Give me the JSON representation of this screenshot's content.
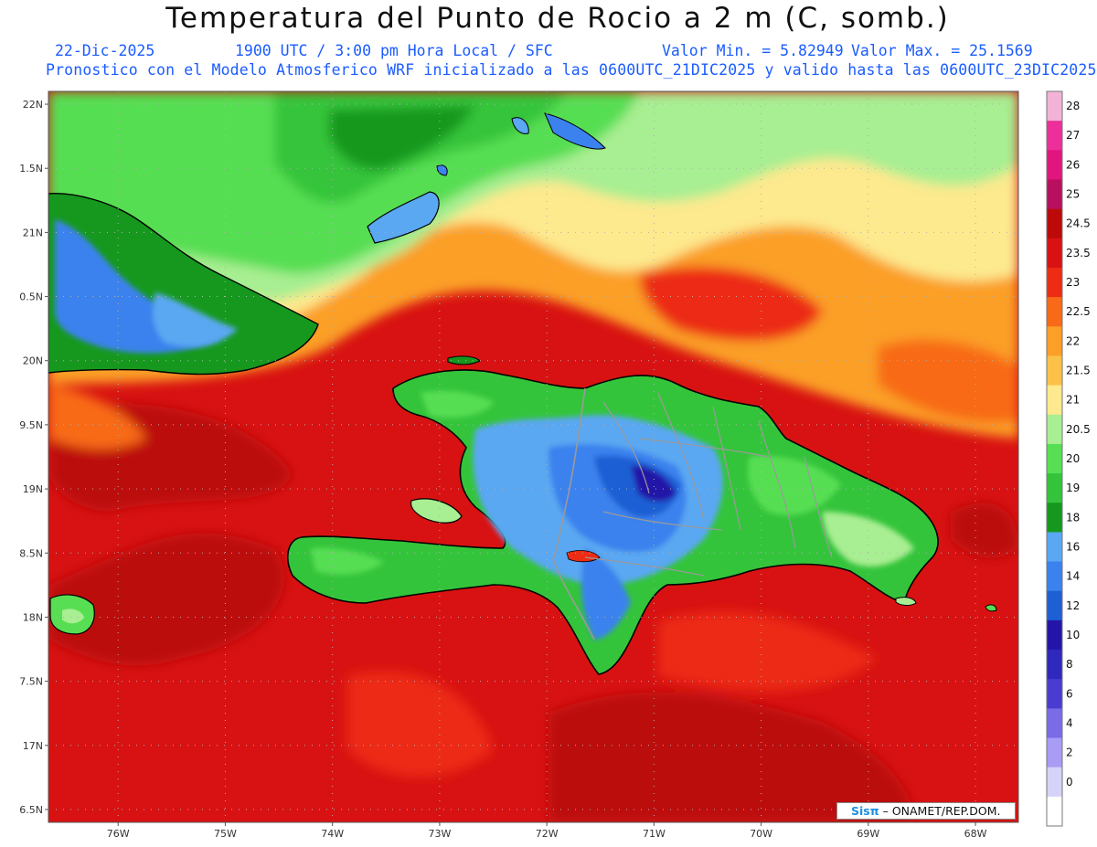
{
  "header": {
    "title": "Temperatura del Punto de Rocio a 2 m (C, somb.)",
    "date": "22-Dic-2025",
    "time": "1900 UTC / 3:00 pm Hora Local / SFC",
    "min": "Valor Min. = 5.82949",
    "max": "Valor Max. = 25.1569",
    "model_line": "Pronostico con el Modelo Atmosferico WRF inicializado a las 0600UTC_21DIC2025 y valido hasta las  0600UTC_23DIC2025"
  },
  "axes": {
    "lon_ticks": [
      {
        "value": -76,
        "label": "76W"
      },
      {
        "value": -75,
        "label": "75W"
      },
      {
        "value": -74,
        "label": "74W"
      },
      {
        "value": -73,
        "label": "73W"
      },
      {
        "value": -72,
        "label": "72W"
      },
      {
        "value": -71,
        "label": "71W"
      },
      {
        "value": -70,
        "label": "70W"
      },
      {
        "value": -69,
        "label": "69W"
      },
      {
        "value": -68,
        "label": "68W"
      }
    ],
    "lat_ticks": [
      {
        "value": 22,
        "label": "22N"
      },
      {
        "value": 21.5,
        "label": "1.5N"
      },
      {
        "value": 21,
        "label": "21N"
      },
      {
        "value": 20.5,
        "label": "0.5N"
      },
      {
        "value": 20,
        "label": "20N"
      },
      {
        "value": 19.5,
        "label": "9.5N"
      },
      {
        "value": 19,
        "label": "19N"
      },
      {
        "value": 18.5,
        "label": "8.5N"
      },
      {
        "value": 18,
        "label": "18N"
      },
      {
        "value": 17.5,
        "label": "7.5N"
      },
      {
        "value": 17,
        "label": "17N"
      },
      {
        "value": 16.5,
        "label": "6.5N"
      }
    ],
    "lon_range": [
      -76.65,
      -67.6
    ],
    "lat_range": [
      16.4,
      22.1
    ]
  },
  "colorbar": {
    "levels": [
      {
        "label": "28",
        "color": "#f3b3d6"
      },
      {
        "label": "27",
        "color": "#ec2f9a"
      },
      {
        "label": "26",
        "color": "#e0157d"
      },
      {
        "label": "25",
        "color": "#b8105e"
      },
      {
        "label": "24.5",
        "color": "#bc0a0a"
      },
      {
        "label": "23.5",
        "color": "#d81212"
      },
      {
        "label": "23",
        "color": "#ec2c14"
      },
      {
        "label": "22.5",
        "color": "#f86a18"
      },
      {
        "label": "22",
        "color": "#fb9f28"
      },
      {
        "label": "21.5",
        "color": "#fcc148"
      },
      {
        "label": "21",
        "color": "#fde98e"
      },
      {
        "label": "20.5",
        "color": "#a8ee92"
      },
      {
        "label": "20",
        "color": "#57de52"
      },
      {
        "label": "19",
        "color": "#34c43b"
      },
      {
        "label": "18",
        "color": "#16981e"
      },
      {
        "label": "16",
        "color": "#5aa7f2"
      },
      {
        "label": "14",
        "color": "#3b82ee"
      },
      {
        "label": "12",
        "color": "#1f5fd4"
      },
      {
        "label": "10",
        "color": "#2415a8"
      },
      {
        "label": "8",
        "color": "#2e28bc"
      },
      {
        "label": "6",
        "color": "#4a3cd0"
      },
      {
        "label": "4",
        "color": "#7a6be6"
      },
      {
        "label": "2",
        "color": "#a89cf4"
      },
      {
        "label": "0",
        "color": "#d6d3f8"
      },
      {
        "label": "",
        "color": "#ffffff"
      }
    ]
  },
  "map_colors": {
    "ocean_red": "#d81212",
    "deep_red": "#bc0a0a",
    "orange": "#fb9f28",
    "dark_orange": "#f86a18",
    "yellow": "#fde98e",
    "light_green": "#a8ee92",
    "green": "#57de52",
    "mid_green": "#34c43b",
    "dark_green": "#16981e",
    "blue": "#5aa7f2",
    "mid_blue": "#3b82ee",
    "deep_blue": "#2415a8",
    "coast": "#000000",
    "borders": "#9a9a9a",
    "grid": "#b0b0b0"
  },
  "credit": {
    "logo": "Sisπ",
    "text": " – ONAMET/REP.DOM."
  }
}
